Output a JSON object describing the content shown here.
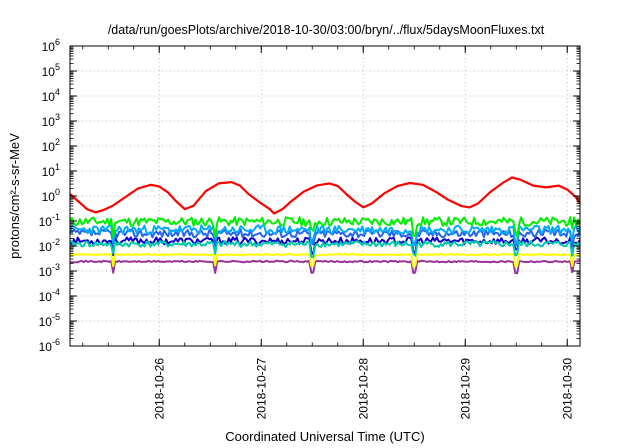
{
  "chart_data": {
    "type": "line",
    "title": "/data/run/goesPlots/archive/2018-10-30/03:00/bryn/../flux/5daysMoonFluxes.txt",
    "xlabel": "Coordinated Universal Time (UTC)",
    "ylabel": "protons/cm²-s-sr-MeV",
    "y_scale": "log",
    "ylim": [
      1e-06,
      1000000.0
    ],
    "y_ticks": [
      {
        "value": 1e-06,
        "base": "10",
        "exp": "-6"
      },
      {
        "value": 1e-05,
        "base": "10",
        "exp": "-5"
      },
      {
        "value": 0.0001,
        "base": "10",
        "exp": "-4"
      },
      {
        "value": 0.001,
        "base": "10",
        "exp": "-3"
      },
      {
        "value": 0.01,
        "base": "10",
        "exp": "-2"
      },
      {
        "value": 0.1,
        "base": "10",
        "exp": "-1"
      },
      {
        "value": 1,
        "base": "10",
        "exp": "0"
      },
      {
        "value": 10,
        "base": "10",
        "exp": "1"
      },
      {
        "value": 100,
        "base": "10",
        "exp": "2"
      },
      {
        "value": 1000,
        "base": "10",
        "exp": "3"
      },
      {
        "value": 10000,
        "base": "10",
        "exp": "4"
      },
      {
        "value": 100000,
        "base": "10",
        "exp": "5"
      },
      {
        "value": 1000000,
        "base": "10",
        "exp": "6"
      }
    ],
    "xlim": [
      "2018-10-25T03:00",
      "2018-10-30T03:00"
    ],
    "x_ticks": [
      {
        "date": "2018-10-26T00:00",
        "label": "2018-10-26"
      },
      {
        "date": "2018-10-27T00:00",
        "label": "2018-10-27"
      },
      {
        "date": "2018-10-28T00:00",
        "label": "2018-10-28"
      },
      {
        "date": "2018-10-29T00:00",
        "label": "2018-10-29"
      },
      {
        "date": "2018-10-30T00:00",
        "label": "2018-10-30"
      }
    ],
    "grid": true,
    "legend": false,
    "series": [
      {
        "color": "#ff0000",
        "points": [
          [
            "2018-10-25T03:00",
            1.2
          ],
          [
            "2018-10-25T05:00",
            0.6
          ],
          [
            "2018-10-25T07:00",
            0.3
          ],
          [
            "2018-10-25T09:00",
            0.22
          ],
          [
            "2018-10-25T11:00",
            0.28
          ],
          [
            "2018-10-25T13:00",
            0.4
          ],
          [
            "2018-10-25T16:00",
            0.9
          ],
          [
            "2018-10-25T19:00",
            2.0
          ],
          [
            "2018-10-25T22:00",
            2.8
          ],
          [
            "2018-10-26T00:00",
            2.4
          ],
          [
            "2018-10-26T02:00",
            1.4
          ],
          [
            "2018-10-26T04:00",
            0.6
          ],
          [
            "2018-10-26T06:00",
            0.3
          ],
          [
            "2018-10-26T08:00",
            0.4
          ],
          [
            "2018-10-26T11:00",
            1.6
          ],
          [
            "2018-10-26T14:00",
            3.2
          ],
          [
            "2018-10-26T17:00",
            3.6
          ],
          [
            "2018-10-26T19:00",
            2.6
          ],
          [
            "2018-10-26T21:00",
            1.2
          ],
          [
            "2018-10-27T00:00",
            0.5
          ],
          [
            "2018-10-27T02:00",
            0.3
          ],
          [
            "2018-10-27T03:00",
            0.2
          ],
          [
            "2018-10-27T05:00",
            0.3
          ],
          [
            "2018-10-27T07:00",
            0.6
          ],
          [
            "2018-10-27T10:00",
            1.5
          ],
          [
            "2018-10-27T13:00",
            2.6
          ],
          [
            "2018-10-27T16:00",
            3.2
          ],
          [
            "2018-10-27T18:00",
            2.5
          ],
          [
            "2018-10-27T20:00",
            1.2
          ],
          [
            "2018-10-27T22:00",
            0.6
          ],
          [
            "2018-10-28T00:00",
            0.35
          ],
          [
            "2018-10-28T02:00",
            0.5
          ],
          [
            "2018-10-28T05:00",
            1.3
          ],
          [
            "2018-10-28T08:00",
            2.5
          ],
          [
            "2018-10-28T11:00",
            3.3
          ],
          [
            "2018-10-28T14:00",
            2.8
          ],
          [
            "2018-10-28T17:00",
            1.5
          ],
          [
            "2018-10-28T20:00",
            0.7
          ],
          [
            "2018-10-28T23:00",
            0.4
          ],
          [
            "2018-10-29T01:00",
            0.35
          ],
          [
            "2018-10-29T03:00",
            0.5
          ],
          [
            "2018-10-29T06:00",
            1.5
          ],
          [
            "2018-10-29T09:00",
            3.5
          ],
          [
            "2018-10-29T11:00",
            5.5
          ],
          [
            "2018-10-29T13:00",
            4.5
          ],
          [
            "2018-10-29T16:00",
            2.6
          ],
          [
            "2018-10-29T19:00",
            2.2
          ],
          [
            "2018-10-29T22:00",
            2.6
          ],
          [
            "2018-10-30T00:00",
            1.8
          ],
          [
            "2018-10-30T02:00",
            0.9
          ],
          [
            "2018-10-30T03:00",
            0.5
          ]
        ]
      },
      {
        "color": "#00ee00",
        "base": 0.095,
        "amp": 0.18,
        "seed": 11
      },
      {
        "color": "#00aaff",
        "base": 0.045,
        "amp": 0.18,
        "seed": 23
      },
      {
        "color": "#2266ee",
        "base": 0.032,
        "amp": 0.16,
        "seed": 37
      },
      {
        "color": "#00ccaa",
        "base": 0.012,
        "amp": 0.12,
        "seed": 41
      },
      {
        "color": "#1100cc",
        "base": 0.016,
        "amp": 0.14,
        "seed": 53
      },
      {
        "color": "#ffff00",
        "base": 0.0045,
        "amp": 0.03,
        "seed": 61
      },
      {
        "color": "#993399",
        "base": 0.0024,
        "amp": 0.03,
        "seed": 71
      }
    ],
    "dip_times": [
      "2018-10-25T13:00",
      "2018-10-26T13:00",
      "2018-10-27T12:00",
      "2018-10-28T12:00",
      "2018-10-29T12:00",
      "2018-10-30T01:00"
    ]
  }
}
